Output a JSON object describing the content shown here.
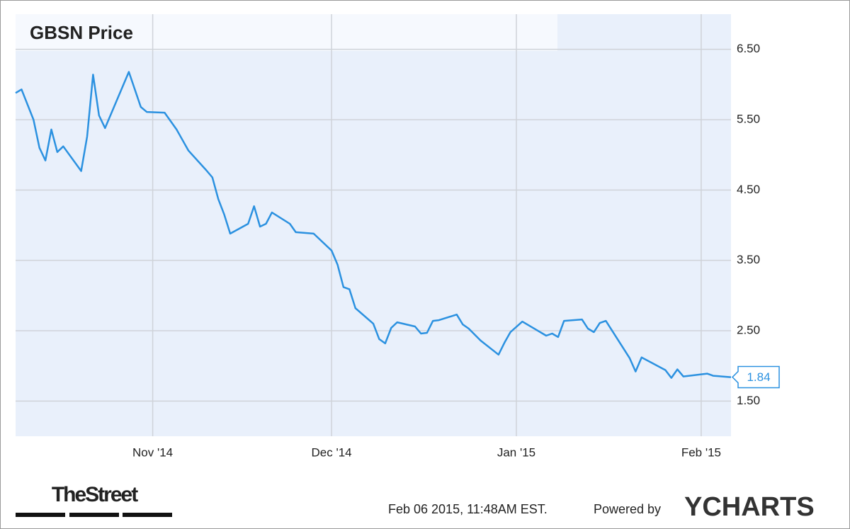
{
  "chart_data": {
    "type": "line",
    "title": "GBSN Price",
    "x": [
      0,
      1,
      3,
      4,
      5,
      6,
      7,
      8,
      11,
      12,
      13,
      14,
      15,
      19,
      21,
      22,
      25,
      27,
      29,
      32,
      33,
      34,
      35,
      36,
      39,
      40,
      41,
      42,
      43,
      46,
      47,
      50,
      53,
      54,
      55,
      56,
      57,
      60,
      61,
      62,
      63,
      64,
      67,
      68,
      69,
      70,
      71,
      74,
      75,
      76,
      78,
      81,
      82,
      83,
      85,
      89,
      90,
      91,
      92,
      95,
      96,
      97,
      98,
      99,
      103,
      104,
      105,
      109,
      110,
      111,
      112,
      116,
      117,
      120
    ],
    "series": [
      {
        "name": "GBSN Price",
        "color": "#2b91e0",
        "values": [
          5.88,
          5.93,
          5.5,
          5.1,
          4.92,
          5.36,
          5.04,
          5.12,
          4.77,
          5.26,
          6.14,
          5.56,
          5.38,
          6.18,
          5.68,
          5.61,
          5.6,
          5.36,
          5.06,
          4.78,
          4.68,
          4.37,
          4.15,
          3.88,
          4.02,
          4.27,
          3.98,
          4.02,
          4.18,
          4.02,
          3.9,
          3.88,
          3.64,
          3.44,
          3.12,
          3.09,
          2.82,
          2.6,
          2.38,
          2.32,
          2.54,
          2.62,
          2.56,
          2.46,
          2.47,
          2.64,
          2.65,
          2.73,
          2.59,
          2.53,
          2.36,
          2.16,
          2.33,
          2.48,
          2.63,
          2.43,
          2.46,
          2.41,
          2.64,
          2.66,
          2.53,
          2.48,
          2.61,
          2.64,
          2.11,
          1.92,
          2.12,
          1.94,
          1.83,
          1.95,
          1.85,
          1.89,
          1.86,
          1.84
        ]
      }
    ],
    "xlim": [
      0,
      120
    ],
    "xticks": [
      {
        "value": 23,
        "label": "Nov '14"
      },
      {
        "value": 53,
        "label": "Dec '14"
      },
      {
        "value": 84,
        "label": "Jan '15"
      },
      {
        "value": 115,
        "label": "Feb '15"
      }
    ],
    "ylim": [
      1.0,
      7.0
    ],
    "yticks": [
      {
        "value": 1.5,
        "label": "1.50"
      },
      {
        "value": 2.5,
        "label": "2.50"
      },
      {
        "value": 3.5,
        "label": "3.50"
      },
      {
        "value": 4.5,
        "label": "4.50"
      },
      {
        "value": 5.5,
        "label": "5.50"
      },
      {
        "value": 6.5,
        "label": "6.50"
      }
    ],
    "grid": true,
    "source_logo": "TheStreet",
    "timestamp": "Feb 06 2015, 11:48AM EST.",
    "credit": "Powered by",
    "brand": "YCHARTS"
  }
}
